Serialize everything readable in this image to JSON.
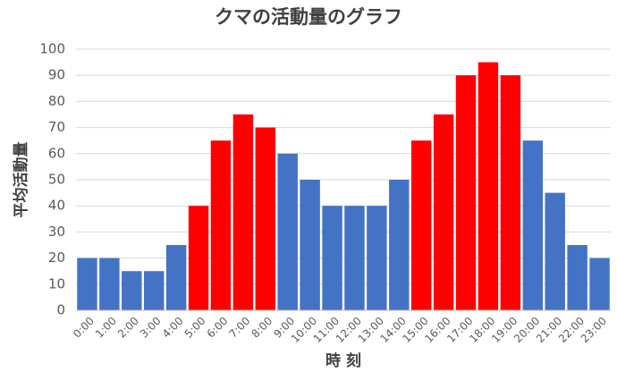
{
  "chart_data": {
    "type": "bar",
    "title": "クマの活動量のグラフ",
    "x_label": "時 刻",
    "y_label": "平均活動量",
    "categories": [
      "0:00",
      "1:00",
      "2:00",
      "3:00",
      "4:00",
      "5:00",
      "6:00",
      "7:00",
      "8:00",
      "9:00",
      "10:00",
      "11:00",
      "12:00",
      "13:00",
      "14:00",
      "15:00",
      "16:00",
      "17:00",
      "18:00",
      "19:00",
      "20:00",
      "21:00",
      "22:00",
      "23:00"
    ],
    "values": [
      20,
      20,
      15,
      15,
      25,
      40,
      65,
      75,
      70,
      60,
      50,
      40,
      40,
      40,
      50,
      65,
      75,
      90,
      95,
      90,
      65,
      45,
      25,
      20
    ],
    "colors": [
      "#4472c4",
      "#4472c4",
      "#4472c4",
      "#4472c4",
      "#4472c4",
      "#ff0000",
      "#ff0000",
      "#ff0000",
      "#ff0000",
      "#4472c4",
      "#4472c4",
      "#4472c4",
      "#4472c4",
      "#4472c4",
      "#4472c4",
      "#ff0000",
      "#ff0000",
      "#ff0000",
      "#ff0000",
      "#ff0000",
      "#4472c4",
      "#4472c4",
      "#4472c4",
      "#4472c4"
    ],
    "ylim": [
      0,
      100
    ],
    "yticks": [
      0,
      10,
      20,
      30,
      40,
      50,
      60,
      70,
      80,
      90,
      100
    ],
    "grid": true
  }
}
